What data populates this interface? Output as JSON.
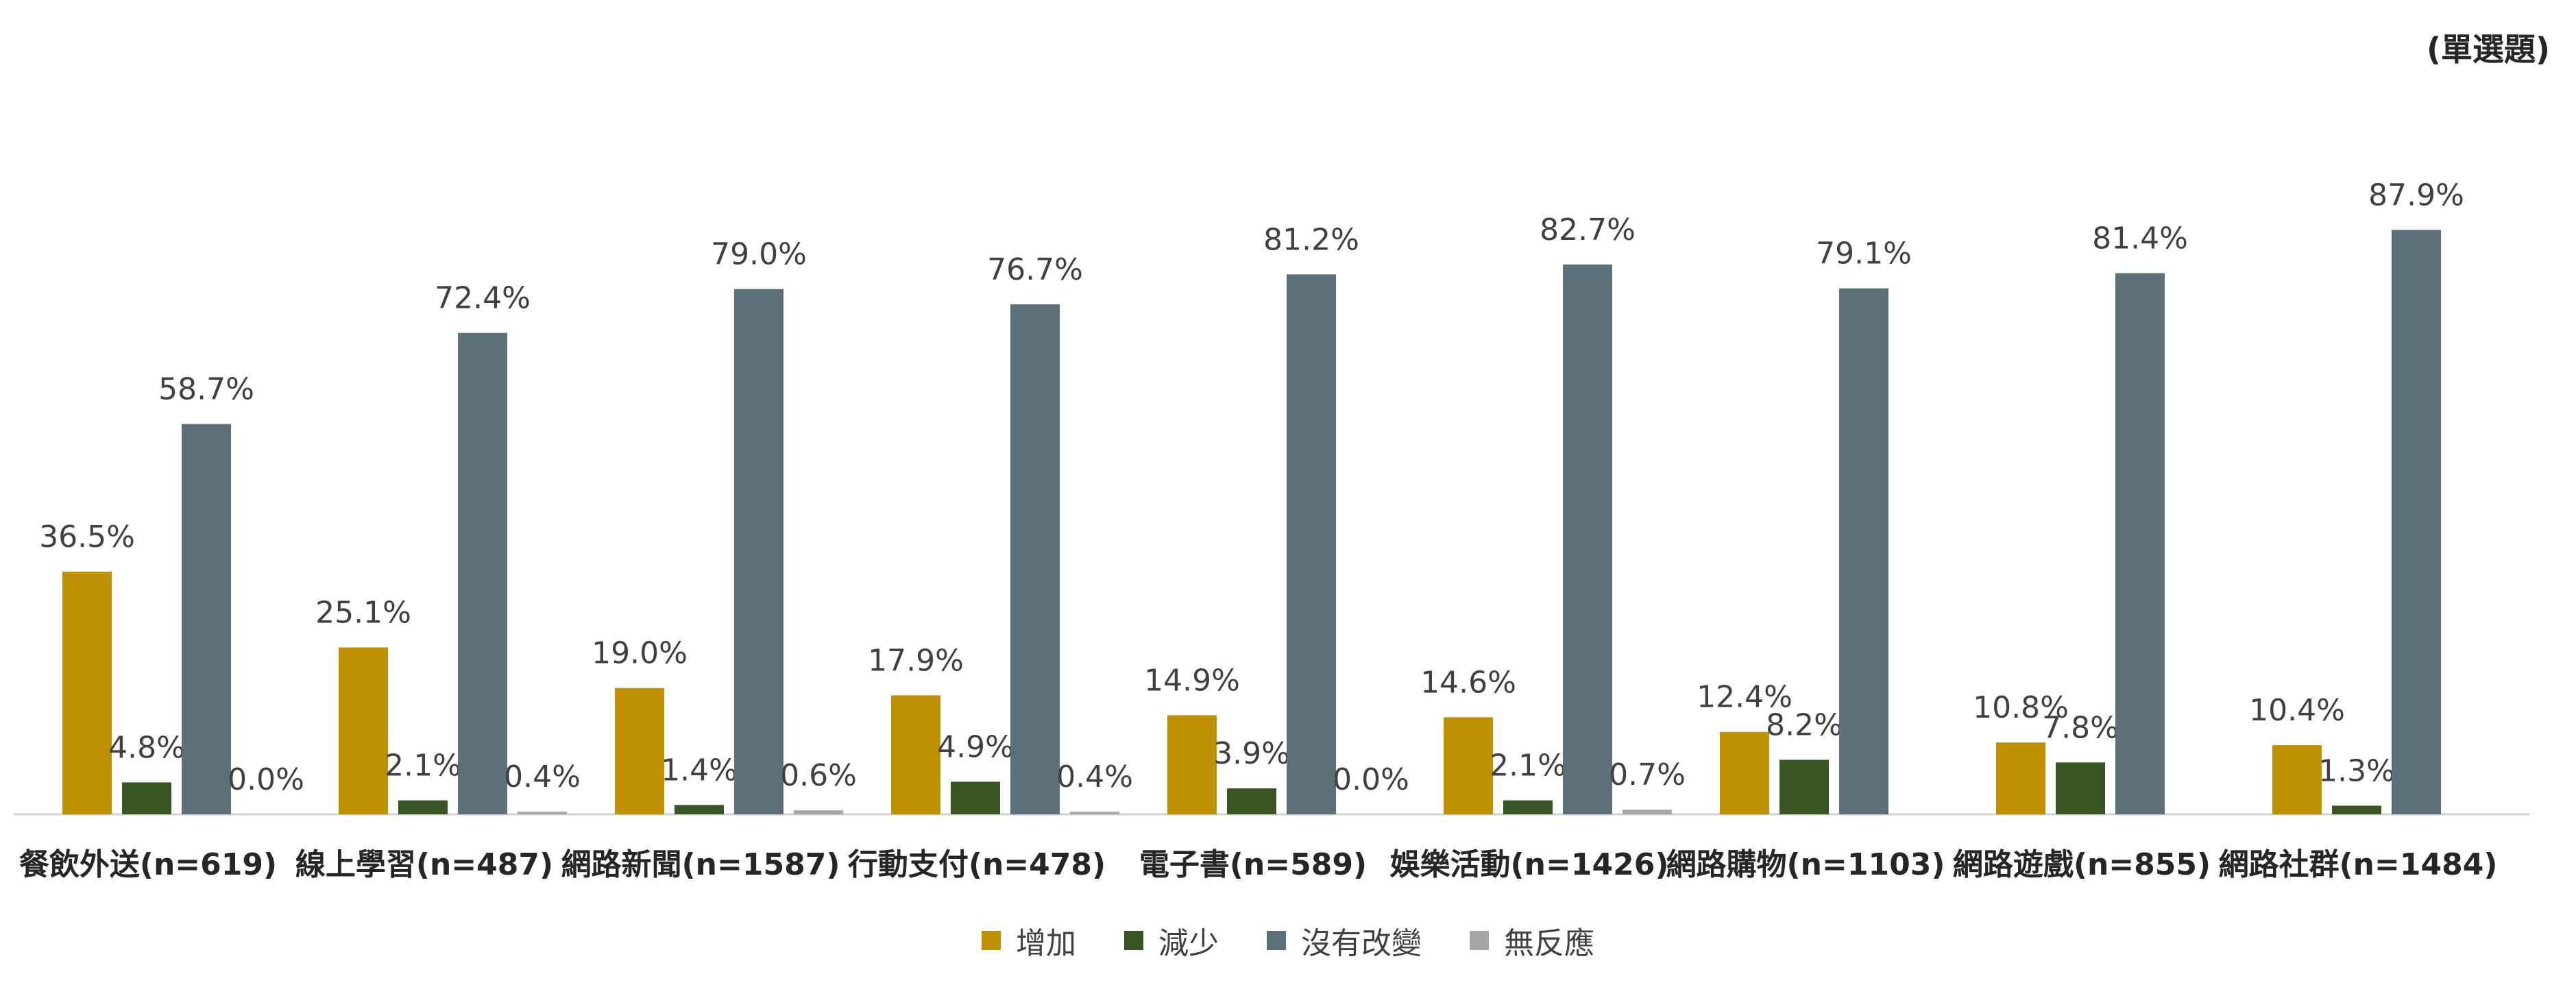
{
  "note": "(單選題)",
  "chart_data": {
    "type": "bar",
    "categories": [
      "餐飲外送(n=619)",
      "線上學習(n=487)",
      "網路新聞(n=1587)",
      "行動支付(n=478)",
      "電子書(n=589)",
      "娛樂活動(n=1426)",
      "網路購物(n=1103)",
      "網路遊戲(n=855)",
      "網路社群(n=1484)"
    ],
    "series": [
      {
        "name": "增加",
        "color": "#BF9000",
        "values": [
          36.5,
          25.1,
          19.0,
          17.9,
          14.9,
          14.6,
          12.4,
          10.8,
          10.4
        ],
        "labels": [
          "36.5%",
          "25.1%",
          "19.0%",
          "17.9%",
          "14.9%",
          "14.6%",
          "12.4%",
          "10.8%",
          "10.4%"
        ]
      },
      {
        "name": "減少",
        "color": "#375623",
        "values": [
          4.8,
          2.1,
          1.4,
          4.9,
          3.9,
          2.1,
          8.2,
          7.8,
          1.3
        ],
        "labels": [
          "4.8%",
          "2.1%",
          "1.4%",
          "4.9%",
          "3.9%",
          "2.1%",
          "8.2%",
          "7.8%",
          "1.3%"
        ]
      },
      {
        "name": "沒有改變",
        "color": "#5B7078",
        "values": [
          58.7,
          72.4,
          79.0,
          76.7,
          81.2,
          82.7,
          79.1,
          81.4,
          87.9
        ],
        "labels": [
          "58.7%",
          "72.4%",
          "79.0%",
          "76.7%",
          "81.2%",
          "82.7%",
          "79.1%",
          "81.4%",
          "87.9%"
        ]
      },
      {
        "name": "無反應",
        "color": "#A6A6A6",
        "values": [
          0.0,
          0.4,
          0.6,
          0.4,
          0.0,
          0.7,
          null,
          null,
          null
        ],
        "labels": [
          "0.0%",
          "0.4%",
          "0.6%",
          "0.4%",
          "0.0%",
          "0.7%",
          null,
          null,
          null
        ]
      }
    ],
    "ylim": [
      0,
      100
    ],
    "grid": false,
    "legend_position": "bottom-center"
  }
}
